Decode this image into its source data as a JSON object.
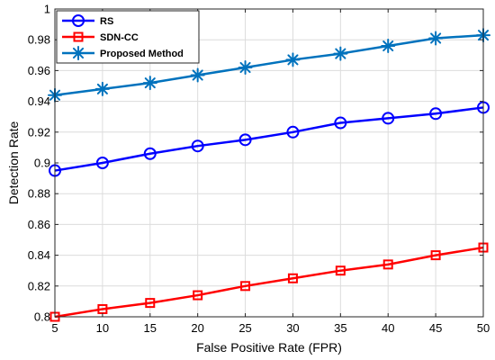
{
  "chart_data": {
    "type": "line",
    "xlabel": "False Positive Rate (FPR)",
    "ylabel": "Detection Rate",
    "xlim": [
      5,
      50
    ],
    "ylim": [
      0.8,
      1.0
    ],
    "xticks": [
      "5",
      "10",
      "15",
      "20",
      "25",
      "30",
      "35",
      "40",
      "45",
      "50"
    ],
    "yticks": [
      "0.8",
      "0.82",
      "0.84",
      "0.86",
      "0.88",
      "0.9",
      "0.92",
      "0.94",
      "0.96",
      "0.98",
      "1"
    ],
    "grid": true,
    "legend_position": "top-left",
    "x": [
      5,
      10,
      15,
      20,
      25,
      30,
      35,
      40,
      45,
      50
    ],
    "series": [
      {
        "name": "RS",
        "color": "#0000ff",
        "marker": "circle",
        "values": [
          0.895,
          0.9,
          0.906,
          0.911,
          0.915,
          0.92,
          0.926,
          0.929,
          0.932,
          0.936
        ]
      },
      {
        "name": "SDN-CC",
        "color": "#ff0000",
        "marker": "square",
        "values": [
          0.8,
          0.805,
          0.809,
          0.814,
          0.82,
          0.825,
          0.83,
          0.834,
          0.84,
          0.845
        ]
      },
      {
        "name": "Proposed Method",
        "color": "#0072bd",
        "marker": "asterisk",
        "values": [
          0.944,
          0.948,
          0.952,
          0.957,
          0.962,
          0.967,
          0.971,
          0.976,
          0.981,
          0.983
        ]
      }
    ]
  }
}
